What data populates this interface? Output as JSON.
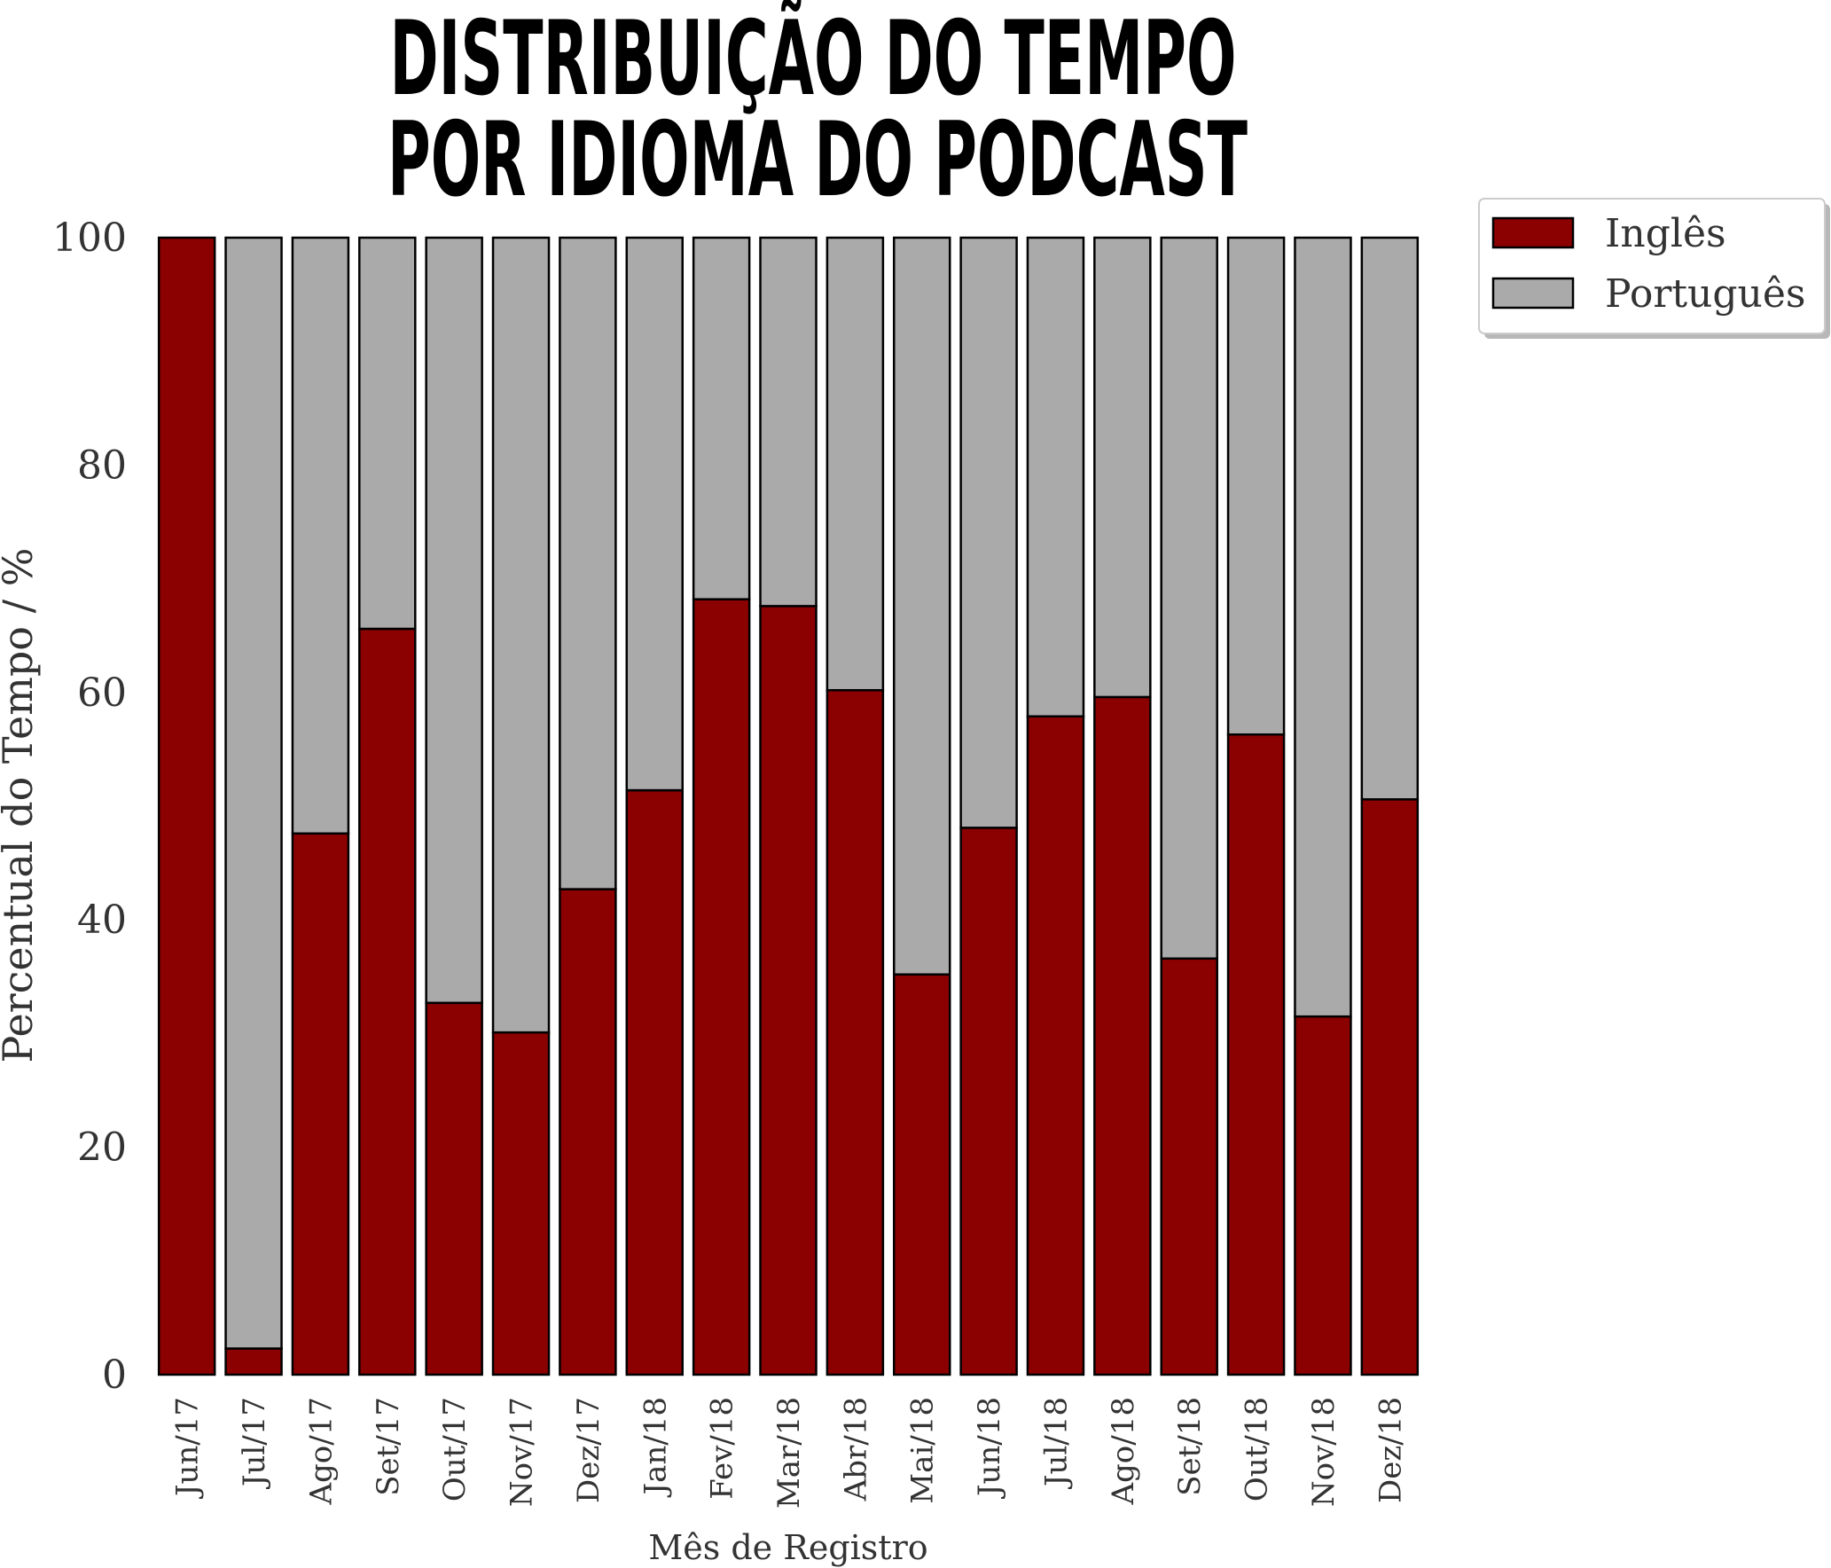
{
  "chart_data": {
    "type": "bar",
    "stacked": true,
    "title_lines": [
      "DISTRIBUIÇÃO DO TEMPO",
      "POR IDIOMA DO PODCAST"
    ],
    "xlabel": "Mês de Registro",
    "ylabel": "Percentual do Tempo / %",
    "ylim": [
      0,
      100
    ],
    "yticks": [
      "0",
      "20",
      "40",
      "60",
      "80",
      "100"
    ],
    "categories": [
      "Jun/17",
      "Jul/17",
      "Ago/17",
      "Set/17",
      "Out/17",
      "Nov/17",
      "Dez/17",
      "Jan/18",
      "Fev/18",
      "Mar/18",
      "Abr/18",
      "Mai/18",
      "Jun/18",
      "Jul/18",
      "Ago/18",
      "Set/18",
      "Out/18",
      "Nov/18",
      "Dez/18"
    ],
    "series": [
      {
        "name": "Inglês",
        "color": "#8b0000",
        "values": [
          100,
          2.3,
          47.6,
          65.6,
          32.7,
          30.1,
          42.7,
          51.4,
          68.2,
          67.6,
          60.2,
          35.2,
          48.1,
          57.9,
          59.6,
          36.6,
          56.3,
          31.5,
          50.6
        ]
      },
      {
        "name": "Português",
        "color": "#aaaaaa",
        "values": [
          0,
          97.7,
          52.4,
          34.4,
          67.3,
          69.9,
          57.3,
          48.6,
          31.8,
          32.4,
          39.8,
          64.8,
          51.9,
          42.1,
          40.4,
          63.4,
          43.7,
          68.5,
          49.4
        ]
      }
    ],
    "legend_position": "outside-top-right",
    "grid": false
  }
}
